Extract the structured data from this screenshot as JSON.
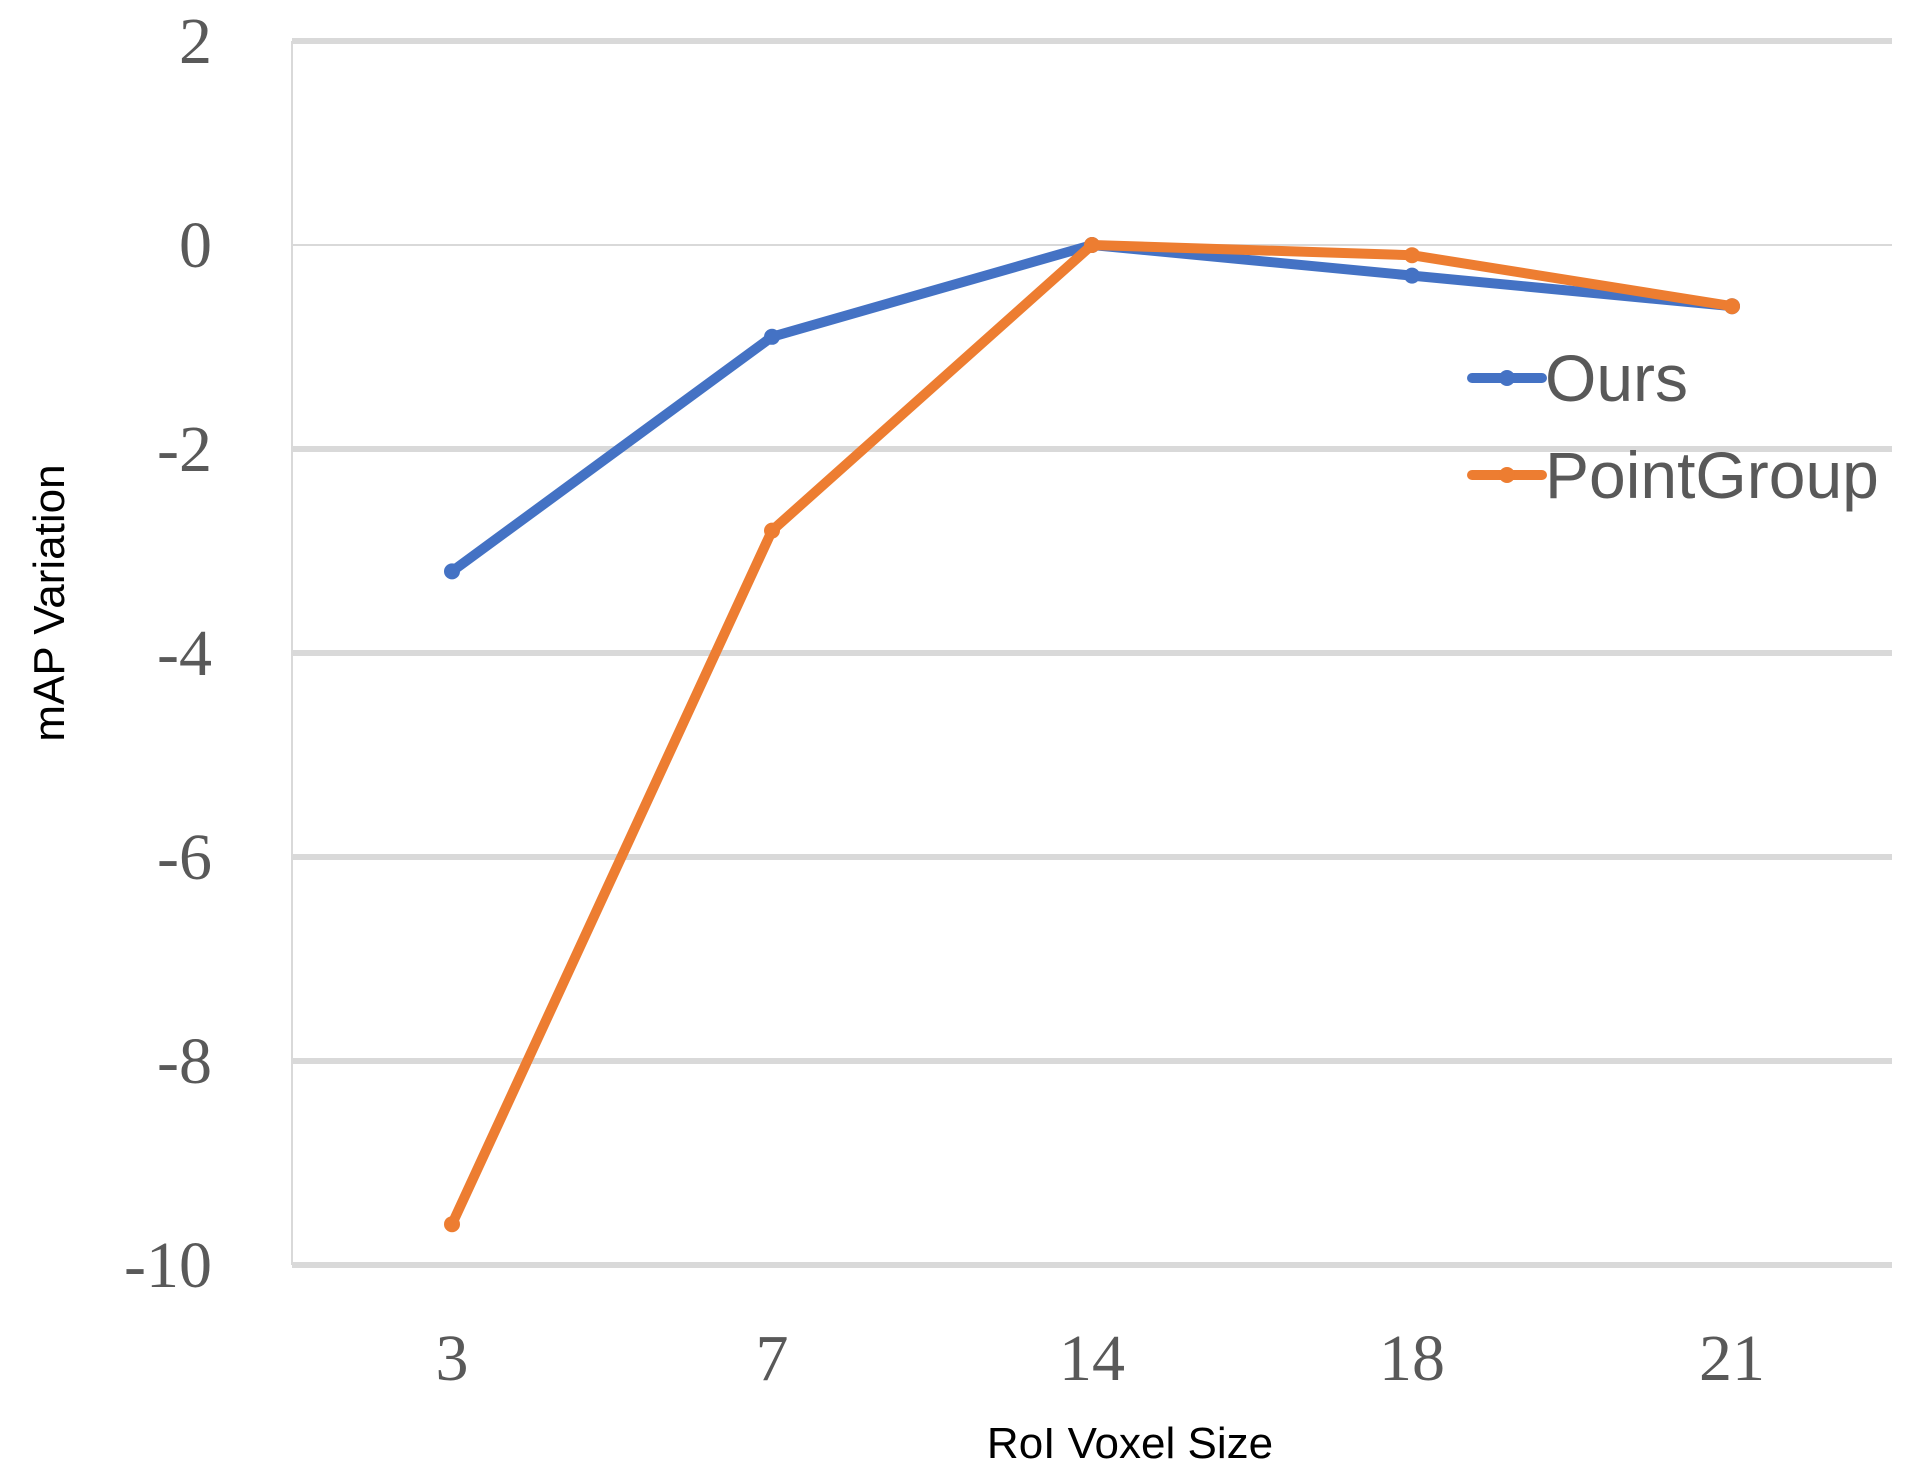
{
  "chart_data": {
    "type": "line",
    "categories": [
      "3",
      "7",
      "14",
      "18",
      "21"
    ],
    "series": [
      {
        "name": "Ours",
        "color": "#4472C4",
        "values": [
          -3.2,
          -0.9,
          0.0,
          -0.3,
          -0.6
        ]
      },
      {
        "name": "PointGroup",
        "color": "#ED7D31",
        "values": [
          -9.6,
          -2.8,
          0.0,
          -0.1,
          -0.6
        ]
      }
    ],
    "xlabel": "RoI Voxel Size",
    "ylabel": "mAP Variation",
    "ylim": [
      -10,
      2
    ],
    "yticks": [
      "2",
      "0",
      "-2",
      "-4",
      "-6",
      "-8",
      "-10"
    ],
    "ytick_values": [
      2,
      0,
      -2,
      -4,
      -6,
      -8,
      -10
    ],
    "grid": true,
    "gridline_color": "#D9D9D9",
    "legend_position": "right"
  }
}
